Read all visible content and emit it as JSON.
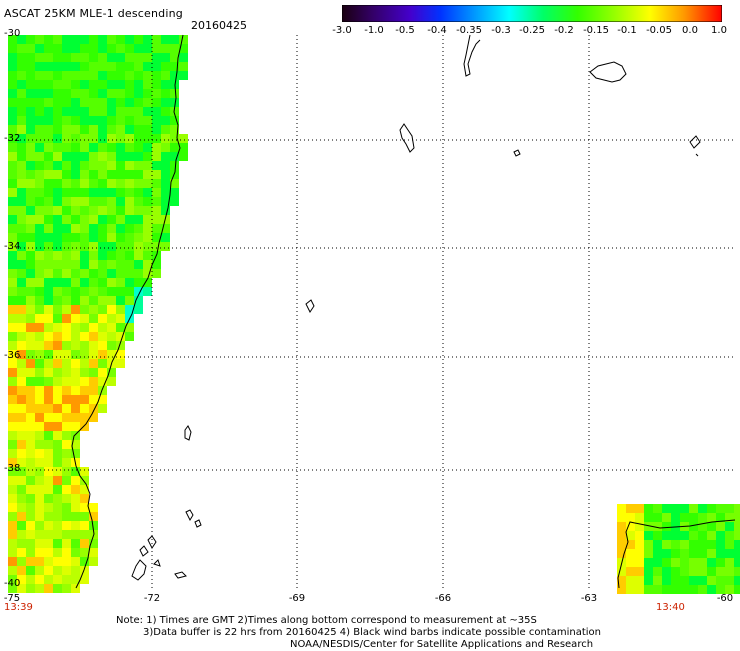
{
  "title": "ASCAT 25KM MLE-1 descending",
  "date": "20160425",
  "colorbar": {
    "colors": [
      "#1a0010",
      "#330066",
      "#4400cc",
      "#0033ff",
      "#0099ff",
      "#00ffff",
      "#00ff66",
      "#33ff00",
      "#99ff00",
      "#ffff00",
      "#ff9900",
      "#ff0000"
    ],
    "tick_labels": [
      "-3.0",
      "-1.0",
      "-0.5",
      "-0.4",
      "-0.35",
      "-0.3",
      "-0.25",
      "-0.2",
      "-0.15",
      "-0.1",
      "-0.05",
      "0.0",
      "1.0"
    ]
  },
  "lat_labels": [
    "-30",
    "-32",
    "-34",
    "-36",
    "-38",
    "-40"
  ],
  "lon_labels": [
    "-75",
    "-72",
    "-69",
    "-66",
    "-63",
    "-60"
  ],
  "times": [
    "13:39",
    "13:40"
  ],
  "notes": [
    "Note: 1) Times are GMT 2)Times along bottom correspond to measurement at ~35S",
    "3)Data buffer is 22 hrs from 20160425 4) Black wind barbs indicate possible contamination",
    "NOAA/NESDIS/Center for Satellite Applications and Research"
  ]
}
